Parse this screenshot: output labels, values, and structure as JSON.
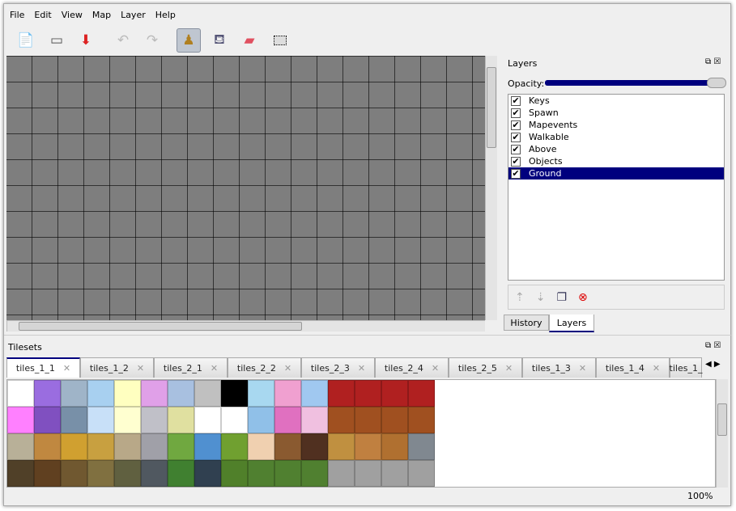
{
  "menu": [
    "File",
    "Edit",
    "View",
    "Map",
    "Layer",
    "Help"
  ],
  "toolbar": {
    "icons": [
      "new-file-icon",
      "open-icon",
      "save-icon",
      "undo-icon",
      "redo-icon",
      "stamp-brush-icon",
      "bucket-fill-icon",
      "eraser-icon",
      "rectangle-select-icon"
    ],
    "active": "stamp-brush-icon"
  },
  "layers_panel": {
    "title": "Layers",
    "opacity_label": "Opacity:",
    "opacity": 1.0,
    "accent": "#00007e",
    "layers": [
      {
        "name": "Keys",
        "visible": true
      },
      {
        "name": "Spawn",
        "visible": true
      },
      {
        "name": "Mapevents",
        "visible": true
      },
      {
        "name": "Walkable",
        "visible": true
      },
      {
        "name": "Above",
        "visible": true
      },
      {
        "name": "Objects",
        "visible": true
      },
      {
        "name": "Ground",
        "visible": true,
        "selected": true
      }
    ],
    "tabs": [
      "History",
      "Layers"
    ],
    "active_tab": "Layers"
  },
  "tilesets": {
    "title": "Tilesets",
    "tabs": [
      "tiles_1_1",
      "tiles_1_2",
      "tiles_2_1",
      "tiles_2_2",
      "tiles_2_3",
      "tiles_2_4",
      "tiles_2_5",
      "tiles_1_3",
      "tiles_1_4",
      "tiles_1_"
    ],
    "active_tab": "tiles_1_1",
    "tile_colors": [
      [
        "#ffffff",
        "#9a6de0",
        "#9fb4c8",
        "#a8d0f0",
        "#ffffc0",
        "#e0a0e8",
        "#a8c0e0",
        "#c0c0c0",
        "#000000",
        "#a8d8f0",
        "#f0a0d0",
        "#a0c8f0",
        "#b02020",
        "#b02020",
        "#b02020",
        "#b02020"
      ],
      [
        "#ff80ff",
        "#8050c0",
        "#7890a8",
        "#c8e0f8",
        "#ffffd0",
        "#c0c0c8",
        "#e0e0a0",
        "#ffffff",
        "#ffffff",
        "#90c0e8",
        "#e070c0",
        "#f0c0e0",
        "#a05020",
        "#a05020",
        "#a05020",
        "#a05020"
      ],
      [
        "#b8b098",
        "#c08840",
        "#d0a030",
        "#c8a040",
        "#b8a888",
        "#a0a0a8",
        "#70a840",
        "#5090d0",
        "#70a030",
        "#f0d0b0",
        "#8a5a30",
        "#503020",
        "#c09040",
        "#c08040",
        "#b07030",
        "#808890"
      ],
      [
        "#504028",
        "#604020",
        "#705830",
        "#807040",
        "#606040",
        "#505860",
        "#408030",
        "#304050",
        "#50802a",
        "#508030",
        "#508030",
        "#508030",
        "#a0a0a0",
        "#a0a0a0",
        "#a0a0a0",
        "#a0a0a0"
      ]
    ]
  },
  "status": {
    "zoom": "100%"
  }
}
